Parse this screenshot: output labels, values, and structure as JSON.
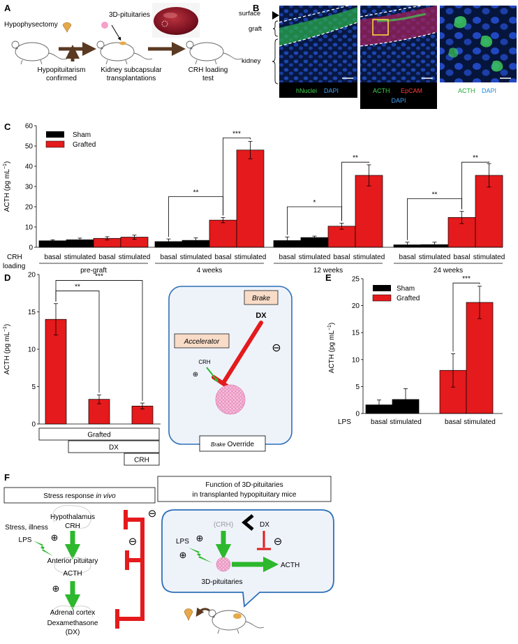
{
  "colors": {
    "sham": "#000000",
    "grafted": "#e41a1c",
    "arrow_green": "#2db82d",
    "brown": "#5a3a22",
    "box_blue": "#2d6fb8",
    "box_fill": "#eef3fa",
    "accent_box": "#f8dcc8",
    "gray_text": "#9a9a9a"
  },
  "panelA": {
    "label": "A",
    "hypophysectomy": "Hypophysectomy",
    "pituitaries": "3D-pituitaries",
    "confirm_line1": "Hypopituitarism",
    "confirm_line2": "confirmed",
    "kidney_line1": "Kidney subcapsular",
    "kidney_line2": "transplantations",
    "crh_line1": "CRH loading",
    "crh_line2": "test"
  },
  "panelB": {
    "label": "B",
    "surface": "surface",
    "graft": "graft",
    "kidney": "kidney",
    "img1_labels": [
      "hNuclei",
      "DAPI"
    ],
    "img2_labels": [
      "ACTH",
      "EpCAM",
      "DAPI"
    ],
    "img3_labels": [
      "ACTH",
      "DAPI"
    ]
  },
  "panelC": {
    "label": "C",
    "row_label1": "CRH",
    "row_label2": "loading"
  },
  "panelD": {
    "label": "D",
    "row_grafted": "Grafted",
    "row_dx": "DX",
    "row_crh": "CRH",
    "accelerator": "Accelerator",
    "brake": "Brake",
    "dx": "DX",
    "crh": "CRH",
    "plus": "⊕",
    "minus": "⊖",
    "override_brake": "Brake",
    "override_word": " Override"
  },
  "panelE": {
    "label": "E"
  },
  "panelF": {
    "label": "F",
    "left_title_plain": "Stress response ",
    "left_title_italic": "in vivo",
    "right_title_line1": "Function of 3D-pituitaries",
    "right_title_line2": "in transplanted hypopituitary mice",
    "hypothalamus": "Hypothalamus",
    "crh": "CRH",
    "anterior": "Anterior pituitary",
    "acth": "ACTH",
    "adrenal": "Adrenal cortex",
    "dexa": "Dexamethasone",
    "dx_paren": "(DX)",
    "stress": "Stress, illness",
    "lps": "LPS",
    "crh_paren": "(CRH)",
    "dx": "DX",
    "lps_right": "LPS",
    "pit": "3D-pituitaries",
    "acth_right": "ACTH",
    "plus": "⊕",
    "minus": "⊖"
  },
  "chart_data": [
    {
      "id": "C",
      "type": "bar",
      "ylabel": "ACTH (pg mL",
      "ylabel_sup": "−1",
      "ylabel_tail": ")",
      "ylim": [
        0,
        60
      ],
      "yticks": [
        0,
        10,
        20,
        30,
        40,
        50,
        60
      ],
      "groups": [
        "pre-graft",
        "4 weeks",
        "12 weeks",
        "24 weeks"
      ],
      "conditions": [
        "basal",
        "stimulated"
      ],
      "legend": [
        "Sham",
        "Grafted"
      ],
      "series": [
        {
          "name": "Sham",
          "values": [
            [
              3.2,
              3.7
            ],
            [
              2.8,
              3.4
            ],
            [
              3.3,
              4.8
            ],
            [
              1.2,
              1.3
            ]
          ],
          "errors": [
            [
              0.5,
              0.8
            ],
            [
              1.3,
              1.2
            ],
            [
              1.8,
              0.7
            ],
            [
              1.3,
              1.2
            ]
          ]
        },
        {
          "name": "Grafted",
          "values": [
            [
              4.4,
              5.0
            ],
            [
              13.4,
              48.0
            ],
            [
              10.4,
              35.5
            ],
            [
              14.7,
              35.5
            ]
          ],
          "errors": [
            [
              0.8,
              1.0
            ],
            [
              1.3,
              4.3
            ],
            [
              1.5,
              5.2
            ],
            [
              3.0,
              5.8
            ]
          ]
        }
      ],
      "significance": [
        {
          "text": "**",
          "from": [
            1,
            "Sham",
            "basal"
          ],
          "to": [
            1,
            "Grafted",
            "basal"
          ],
          "y": 25
        },
        {
          "text": "***",
          "from": [
            1,
            "Grafted",
            "basal"
          ],
          "to": [
            1,
            "Grafted",
            "stimulated"
          ],
          "y": 54
        },
        {
          "text": "*",
          "from": [
            2,
            "Sham",
            "basal"
          ],
          "to": [
            2,
            "Grafted",
            "basal"
          ],
          "y": 20
        },
        {
          "text": "**",
          "from": [
            2,
            "Grafted",
            "basal"
          ],
          "to": [
            2,
            "Grafted",
            "stimulated"
          ],
          "y": 42
        },
        {
          "text": "**",
          "from": [
            3,
            "Sham",
            "basal"
          ],
          "to": [
            3,
            "Grafted",
            "basal"
          ],
          "y": 24
        },
        {
          "text": "**",
          "from": [
            3,
            "Grafted",
            "basal"
          ],
          "to": [
            3,
            "Grafted",
            "stimulated"
          ],
          "y": 42
        }
      ]
    },
    {
      "id": "D",
      "type": "bar",
      "ylabel": "ACTH (pg mL",
      "ylabel_sup": "−1",
      "ylabel_tail": ")",
      "ylim": [
        0,
        20
      ],
      "yticks": [
        0,
        5,
        10,
        15,
        20
      ],
      "values": [
        14.0,
        3.3,
        2.4
      ],
      "errors": [
        2.1,
        0.6,
        0.4
      ],
      "significance": [
        {
          "text": "**",
          "from": 0,
          "to": 1,
          "y": 17.8
        },
        {
          "text": "***",
          "from": 0,
          "to": 2,
          "y": 19.2
        }
      ]
    },
    {
      "id": "E",
      "type": "bar",
      "ylabel": "ACTH (pg mL",
      "ylabel_sup": "−1",
      "ylabel_tail": ")",
      "ylim": [
        0,
        25
      ],
      "yticks": [
        0,
        5,
        10,
        15,
        20,
        25
      ],
      "row_label": "LPS",
      "conditions": [
        "basal",
        "stimulated"
      ],
      "legend": [
        "Sham",
        "Grafted"
      ],
      "series": [
        {
          "name": "Sham",
          "values": [
            1.6,
            2.6
          ],
          "errors": [
            0.9,
            2.0
          ]
        },
        {
          "name": "Grafted",
          "values": [
            8.0,
            20.6
          ],
          "errors": [
            3.1,
            3.0
          ]
        }
      ],
      "significance": [
        {
          "text": "***",
          "from": [
            1,
            "basal"
          ],
          "to": [
            1,
            "stimulated"
          ],
          "y": 24.2
        }
      ]
    }
  ]
}
